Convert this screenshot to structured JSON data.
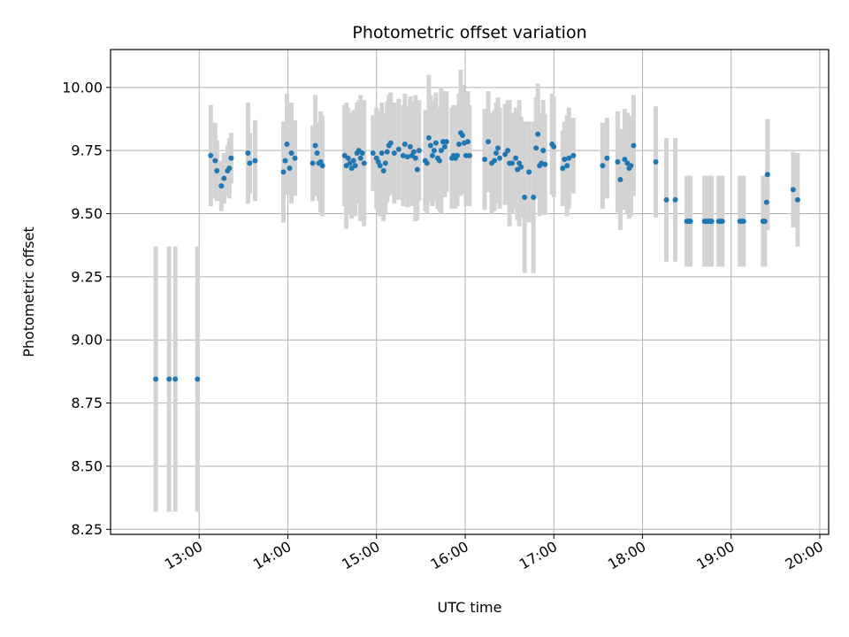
{
  "chart_data": {
    "type": "scatter",
    "title": "Photometric offset variation",
    "xlabel": "UTC time",
    "ylabel": "Photometric offset",
    "x_unit": "UTC hour",
    "xlim": [
      12.0,
      20.1
    ],
    "ylim": [
      8.23,
      10.15
    ],
    "grid": true,
    "x_ticks": [
      {
        "value": 13,
        "label": "13:00"
      },
      {
        "value": 14,
        "label": "14:00"
      },
      {
        "value": 15,
        "label": "15:00"
      },
      {
        "value": 16,
        "label": "16:00"
      },
      {
        "value": 17,
        "label": "17:00"
      },
      {
        "value": 18,
        "label": "18:00"
      },
      {
        "value": 19,
        "label": "19:00"
      },
      {
        "value": 20,
        "label": "20:00"
      }
    ],
    "y_ticks": [
      {
        "value": 8.25,
        "label": "8.25"
      },
      {
        "value": 8.5,
        "label": "8.50"
      },
      {
        "value": 8.75,
        "label": "8.75"
      },
      {
        "value": 9.0,
        "label": "9.00"
      },
      {
        "value": 9.25,
        "label": "9.25"
      },
      {
        "value": 9.5,
        "label": "9.50"
      },
      {
        "value": 9.75,
        "label": "9.75"
      },
      {
        "value": 10.0,
        "label": "10.00"
      }
    ],
    "colors": {
      "point": "#1f77b4",
      "errorbar": "#d3d3d3",
      "grid": "#b0b0b0"
    },
    "points": [
      [
        12.51,
        8.845,
        0.525
      ],
      [
        12.66,
        8.845,
        0.525
      ],
      [
        12.73,
        8.845,
        0.525
      ],
      [
        12.98,
        8.845,
        0.525
      ],
      [
        13.13,
        9.73,
        0.2
      ],
      [
        13.18,
        9.71,
        0.15
      ],
      [
        13.2,
        9.67,
        0.12
      ],
      [
        13.25,
        9.61,
        0.1
      ],
      [
        13.28,
        9.64,
        0.1
      ],
      [
        13.32,
        9.67,
        0.1
      ],
      [
        13.34,
        9.68,
        0.12
      ],
      [
        13.36,
        9.72,
        0.1
      ],
      [
        13.55,
        9.74,
        0.2
      ],
      [
        13.57,
        9.7,
        0.12
      ],
      [
        13.63,
        9.71,
        0.16
      ],
      [
        13.95,
        9.665,
        0.2
      ],
      [
        13.97,
        9.71,
        0.12
      ],
      [
        13.99,
        9.775,
        0.2
      ],
      [
        14.02,
        9.68,
        0.1
      ],
      [
        14.04,
        9.74,
        0.2
      ],
      [
        14.08,
        9.72,
        0.15
      ],
      [
        14.28,
        9.7,
        0.15
      ],
      [
        14.31,
        9.77,
        0.2
      ],
      [
        14.33,
        9.74,
        0.12
      ],
      [
        14.35,
        9.7,
        0.15
      ],
      [
        14.37,
        9.705,
        0.2
      ],
      [
        14.39,
        9.69,
        0.2
      ],
      [
        14.64,
        9.73,
        0.2
      ],
      [
        14.66,
        9.69,
        0.25
      ],
      [
        14.68,
        9.72,
        0.2
      ],
      [
        14.7,
        9.7,
        0.2
      ],
      [
        14.72,
        9.68,
        0.2
      ],
      [
        14.74,
        9.71,
        0.2
      ],
      [
        14.76,
        9.69,
        0.2
      ],
      [
        14.78,
        9.74,
        0.2
      ],
      [
        14.8,
        9.75,
        0.2
      ],
      [
        14.82,
        9.72,
        0.25
      ],
      [
        14.84,
        9.74,
        0.2
      ],
      [
        14.86,
        9.7,
        0.25
      ],
      [
        14.96,
        9.74,
        0.15
      ],
      [
        15.0,
        9.72,
        0.2
      ],
      [
        15.02,
        9.705,
        0.2
      ],
      [
        15.04,
        9.69,
        0.2
      ],
      [
        15.06,
        9.74,
        0.2
      ],
      [
        15.08,
        9.67,
        0.2
      ],
      [
        15.1,
        9.7,
        0.2
      ],
      [
        15.12,
        9.745,
        0.2
      ],
      [
        15.14,
        9.77,
        0.2
      ],
      [
        15.16,
        9.78,
        0.2
      ],
      [
        15.2,
        9.74,
        0.2
      ],
      [
        15.25,
        9.755,
        0.2
      ],
      [
        15.3,
        9.73,
        0.2
      ],
      [
        15.32,
        9.775,
        0.2
      ],
      [
        15.35,
        9.725,
        0.2
      ],
      [
        15.38,
        9.765,
        0.2
      ],
      [
        15.4,
        9.73,
        0.2
      ],
      [
        15.42,
        9.745,
        0.2
      ],
      [
        15.44,
        9.72,
        0.25
      ],
      [
        15.46,
        9.675,
        0.2
      ],
      [
        15.48,
        9.75,
        0.2
      ],
      [
        15.55,
        9.71,
        0.2
      ],
      [
        15.57,
        9.7,
        0.2
      ],
      [
        15.59,
        9.8,
        0.25
      ],
      [
        15.61,
        9.77,
        0.2
      ],
      [
        15.63,
        9.73,
        0.2
      ],
      [
        15.65,
        9.75,
        0.2
      ],
      [
        15.67,
        9.78,
        0.2
      ],
      [
        15.69,
        9.72,
        0.2
      ],
      [
        15.71,
        9.71,
        0.2
      ],
      [
        15.73,
        9.75,
        0.25
      ],
      [
        15.75,
        9.785,
        0.2
      ],
      [
        15.77,
        9.765,
        0.2
      ],
      [
        15.79,
        9.785,
        0.2
      ],
      [
        15.85,
        9.72,
        0.2
      ],
      [
        15.87,
        9.73,
        0.2
      ],
      [
        15.89,
        9.72,
        0.2
      ],
      [
        15.91,
        9.73,
        0.2
      ],
      [
        15.93,
        9.775,
        0.2
      ],
      [
        15.95,
        9.82,
        0.25
      ],
      [
        15.97,
        9.81,
        0.2
      ],
      [
        15.99,
        9.78,
        0.2
      ],
      [
        16.01,
        9.73,
        0.2
      ],
      [
        16.03,
        9.785,
        0.2
      ],
      [
        16.05,
        9.73,
        0.2
      ],
      [
        16.22,
        9.715,
        0.2
      ],
      [
        16.26,
        9.785,
        0.2
      ],
      [
        16.3,
        9.7,
        0.2
      ],
      [
        16.33,
        9.71,
        0.2
      ],
      [
        16.35,
        9.74,
        0.2
      ],
      [
        16.37,
        9.76,
        0.2
      ],
      [
        16.39,
        9.72,
        0.2
      ],
      [
        16.45,
        9.735,
        0.2
      ],
      [
        16.48,
        9.75,
        0.2
      ],
      [
        16.5,
        9.7,
        0.25
      ],
      [
        16.53,
        9.7,
        0.2
      ],
      [
        16.57,
        9.72,
        0.2
      ],
      [
        16.59,
        9.675,
        0.2
      ],
      [
        16.61,
        9.7,
        0.25
      ],
      [
        16.63,
        9.685,
        0.2
      ],
      [
        16.67,
        9.565,
        0.3
      ],
      [
        16.72,
        9.665,
        0.2
      ],
      [
        16.77,
        9.565,
        0.3
      ],
      [
        16.8,
        9.76,
        0.2
      ],
      [
        16.82,
        9.815,
        0.2
      ],
      [
        16.84,
        9.69,
        0.2
      ],
      [
        16.86,
        9.7,
        0.2
      ],
      [
        16.88,
        9.75,
        0.2
      ],
      [
        16.9,
        9.695,
        0.2
      ],
      [
        16.98,
        9.775,
        0.2
      ],
      [
        17.0,
        9.765,
        0.2
      ],
      [
        17.1,
        9.68,
        0.15
      ],
      [
        17.12,
        9.715,
        0.15
      ],
      [
        17.15,
        9.69,
        0.2
      ],
      [
        17.17,
        9.72,
        0.2
      ],
      [
        17.22,
        9.73,
        0.15
      ],
      [
        17.55,
        9.69,
        0.17
      ],
      [
        17.6,
        9.72,
        0.16
      ],
      [
        17.72,
        9.705,
        0.2
      ],
      [
        17.75,
        9.635,
        0.2
      ],
      [
        17.8,
        9.715,
        0.2
      ],
      [
        17.83,
        9.7,
        0.2
      ],
      [
        17.85,
        9.68,
        0.2
      ],
      [
        17.87,
        9.69,
        0.2
      ],
      [
        17.9,
        9.77,
        0.2
      ],
      [
        18.15,
        9.705,
        0.22
      ],
      [
        18.27,
        9.555,
        0.245
      ],
      [
        18.37,
        9.555,
        0.245
      ],
      [
        18.5,
        9.47,
        0.18
      ],
      [
        18.52,
        9.47,
        0.18
      ],
      [
        18.54,
        9.47,
        0.18
      ],
      [
        18.7,
        9.47,
        0.18
      ],
      [
        18.72,
        9.47,
        0.18
      ],
      [
        18.74,
        9.47,
        0.18
      ],
      [
        18.76,
        9.47,
        0.18
      ],
      [
        18.78,
        9.47,
        0.18
      ],
      [
        18.86,
        9.47,
        0.18
      ],
      [
        18.88,
        9.47,
        0.18
      ],
      [
        18.9,
        9.47,
        0.18
      ],
      [
        19.1,
        9.47,
        0.18
      ],
      [
        19.12,
        9.47,
        0.18
      ],
      [
        19.14,
        9.47,
        0.18
      ],
      [
        19.36,
        9.47,
        0.18
      ],
      [
        19.38,
        9.47,
        0.18
      ],
      [
        19.4,
        9.545,
        0.11
      ],
      [
        19.41,
        9.655,
        0.22
      ],
      [
        19.7,
        9.595,
        0.15
      ],
      [
        19.75,
        9.555,
        0.185
      ]
    ]
  }
}
